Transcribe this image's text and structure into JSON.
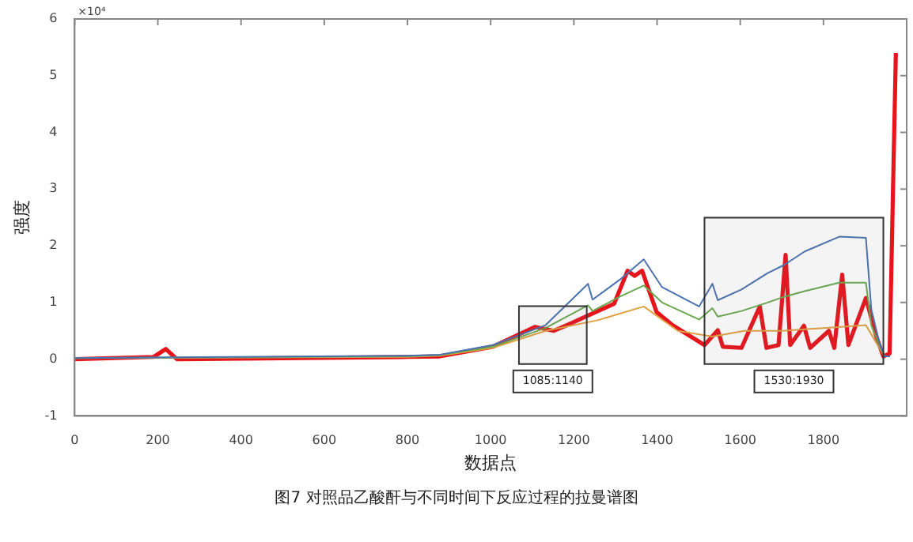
{
  "chart_data": {
    "type": "line",
    "title": "图7 对照品乙酸酐与不同时间下反应过程的拉曼谱图",
    "xlabel": "数据点",
    "ylabel": "强度",
    "annotations": [
      "×10⁴"
    ],
    "xlim": [
      0,
      2000
    ],
    "xticks": [
      0,
      200,
      400,
      600,
      800,
      1000,
      1200,
      1400,
      1600,
      1800
    ],
    "ylim": [
      -1,
      6
    ],
    "yticks": [
      -1,
      0,
      1,
      2,
      3,
      4,
      5,
      6
    ],
    "grid": false,
    "legend": false,
    "marker": "none",
    "line_style": "solid",
    "bands": [
      {
        "axis": "x",
        "from": 1068,
        "to": 1231,
        "label": "1085:1140"
      },
      {
        "axis": "x",
        "from": 1514,
        "to": 1944,
        "label": "1530:1930"
      }
    ],
    "series": [
      {
        "color": "#4a72b0",
        "x": [
          0,
          800,
          878,
          1005,
          1132,
          1234,
          1245,
          1310,
          1368,
          1412,
          1501,
          1533,
          1546,
          1603,
          1666,
          1705,
          1755,
          1838,
          1902,
          1915,
          1934,
          1947,
          1960
        ],
        "values": [
          0.02,
          0.06,
          0.08,
          0.25,
          0.6,
          1.33,
          1.05,
          1.4,
          1.76,
          1.27,
          0.93,
          1.33,
          1.04,
          1.23,
          1.52,
          1.66,
          1.9,
          2.16,
          2.14,
          0.88,
          0.3,
          0.05,
          0.05
        ]
      },
      {
        "color": "#6aa84f",
        "x": [
          0,
          800,
          878,
          1005,
          1132,
          1234,
          1245,
          1310,
          1368,
          1412,
          1501,
          1533,
          1546,
          1603,
          1666,
          1705,
          1755,
          1838,
          1902,
          1915,
          1934,
          1947,
          1960
        ],
        "values": [
          0.02,
          0.05,
          0.07,
          0.22,
          0.55,
          0.95,
          0.85,
          1.1,
          1.3,
          1.0,
          0.7,
          0.9,
          0.75,
          0.85,
          1.0,
          1.1,
          1.2,
          1.35,
          1.35,
          0.6,
          0.25,
          0.05,
          0.05
        ]
      },
      {
        "color": "#e0a040",
        "x": [
          0,
          800,
          878,
          1005,
          1132,
          1259,
          1368,
          1450,
          1533,
          1610,
          1700,
          1800,
          1902,
          1934,
          1947,
          1960
        ],
        "values": [
          0.02,
          0.04,
          0.06,
          0.2,
          0.5,
          0.69,
          0.93,
          0.5,
          0.4,
          0.5,
          0.5,
          0.55,
          0.6,
          0.2,
          0.05,
          0.05
        ]
      },
      {
        "color": "#e8141c",
        "x": [
          0,
          190,
          219,
          246,
          800,
          878,
          1005,
          1107,
          1152,
          1183,
          1297,
          1329,
          1346,
          1364,
          1399,
          1437,
          1514,
          1546,
          1558,
          1603,
          1647,
          1663,
          1692,
          1709,
          1720,
          1753,
          1768,
          1813,
          1826,
          1845,
          1860,
          1902,
          1927,
          1944,
          1959,
          1974
        ],
        "values": [
          0,
          0.04,
          0.18,
          0,
          0.04,
          0.05,
          0.22,
          0.57,
          0.5,
          0.6,
          0.98,
          1.56,
          1.47,
          1.56,
          0.83,
          0.6,
          0.25,
          0.51,
          0.22,
          0.2,
          0.93,
          0.2,
          0.25,
          1.84,
          0.25,
          0.59,
          0.2,
          0.5,
          0.2,
          1.49,
          0.25,
          1.08,
          0.4,
          0.05,
          0.1,
          5.4
        ]
      }
    ]
  }
}
